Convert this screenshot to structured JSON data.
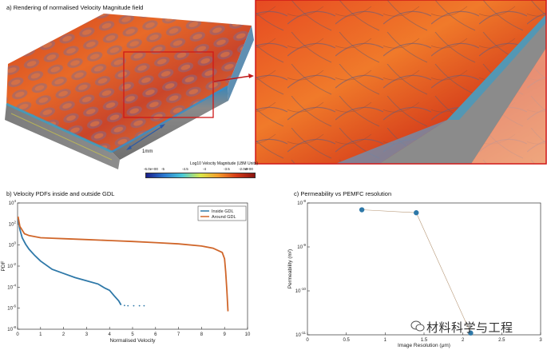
{
  "panel_a": {
    "title": "a) Rendering of normalised Velocity Magnitude field",
    "scale_label": "1mm",
    "colorbar": {
      "title": "Log10 Velocity Magnitude (LBM Units)",
      "min_label": "-6.0e+00",
      "max_label": "-2.0e+00",
      "ticks": [
        "-5",
        "-4.5",
        "-4",
        "-3.5",
        "-3"
      ],
      "colors": [
        "#1a1f8a",
        "#2a78d0",
        "#49c9d8",
        "#d8e84a",
        "#f39a2a",
        "#d43a18",
        "#8a1410"
      ]
    }
  },
  "panel_b": {
    "title": "b) Velocity PDFs inside and outside GDL",
    "chart_data": {
      "type": "line",
      "title": "",
      "xlabel": "Normalised Velocity",
      "ylabel": "PDF",
      "xlim": [
        0,
        10
      ],
      "ylim_log10": [
        -8,
        4
      ],
      "log_y": true,
      "x_ticks": [
        "0",
        "1",
        "2",
        "3",
        "4",
        "5",
        "6",
        "7",
        "8",
        "9",
        "10"
      ],
      "y_ticks": [
        {
          "base": "10",
          "exp": "4"
        },
        {
          "base": "10",
          "exp": "2"
        },
        {
          "base": "10",
          "exp": "0"
        },
        {
          "base": "10",
          "exp": "-2"
        },
        {
          "base": "10",
          "exp": "-4"
        },
        {
          "base": "10",
          "exp": "-6"
        },
        {
          "base": "10",
          "exp": "-8"
        }
      ],
      "legend_position": "top-right",
      "series": [
        {
          "name": "Inside GDL",
          "color": "#2e78a8",
          "x": [
            0.02,
            0.1,
            0.2,
            0.35,
            0.5,
            0.75,
            1.0,
            1.5,
            2.0,
            2.5,
            3.0,
            3.5,
            3.8,
            4.0,
            4.2,
            4.4,
            4.5
          ],
          "y": [
            300,
            30,
            5,
            1.2,
            0.4,
            0.1,
            0.03,
            0.005,
            0.002,
            0.0008,
            0.0004,
            0.0002,
            8e-05,
            5e-05,
            1.5e-05,
            5e-06,
            2e-06
          ],
          "scatter_x": [
            4.65,
            4.8,
            5.05,
            5.3,
            5.5
          ],
          "scatter_y": [
            1.8e-06,
            1.7e-06,
            1.7e-06,
            1.7e-06,
            1.7e-06
          ]
        },
        {
          "name": "Around GDL",
          "color": "#d0662a",
          "x": [
            0.02,
            0.1,
            0.3,
            0.5,
            1.0,
            1.5,
            2.0,
            3.0,
            4.0,
            5.0,
            6.0,
            7.0,
            8.0,
            8.5,
            8.9,
            9.0,
            9.05,
            9.1,
            9.15
          ],
          "y": [
            500,
            60,
            12,
            8,
            5,
            4.5,
            4,
            3.3,
            2.7,
            2.2,
            1.7,
            1.3,
            0.8,
            0.5,
            0.2,
            0.05,
            0.003,
            5e-05,
            5e-07
          ]
        }
      ]
    }
  },
  "panel_c": {
    "title": "c) Permeability vs PEMFC resolution",
    "chart_data": {
      "type": "scatter",
      "title": "",
      "xlabel": "Image Resolution (μm)",
      "ylabel": "Permeability (m²)",
      "xlim": [
        0,
        3
      ],
      "ylim_log10": [
        -11,
        -8
      ],
      "log_y": true,
      "x_ticks": [
        "0",
        "0.5",
        "1",
        "1.5",
        "2",
        "2.5",
        "3"
      ],
      "y_ticks": [
        {
          "base": "10",
          "exp": "-8"
        },
        {
          "base": "10",
          "exp": "-9"
        },
        {
          "base": "10",
          "exp": "-10"
        },
        {
          "base": "10",
          "exp": "-11"
        }
      ],
      "series": [
        {
          "color": "#2e78a8",
          "x": [
            0.7,
            1.4,
            2.1
          ],
          "y": [
            7e-09,
            6e-09,
            1.1e-11
          ]
        }
      ]
    }
  },
  "watermark": {
    "text": "材料科学与工程"
  }
}
